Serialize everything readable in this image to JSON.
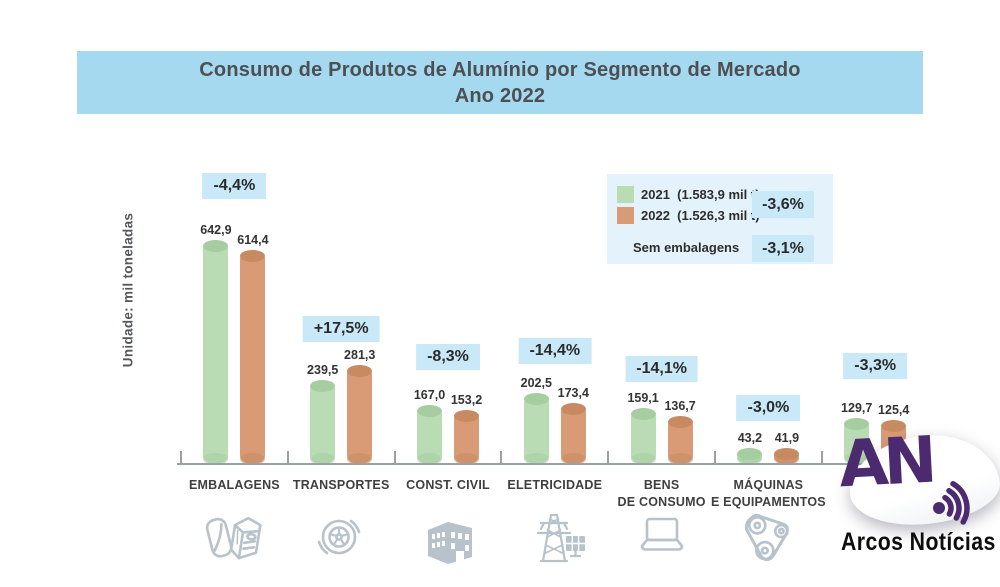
{
  "header": {
    "title_line1": "Consumo de Produtos de Alumínio por Segmento de Mercado",
    "title_line2": "Ano 2022",
    "bg_color": "#a5d9ef"
  },
  "y_axis_label": "Unidade: mil toneladas",
  "legend": {
    "panel_bg": "#e4f2fb",
    "badge_bg": "#c9e9f8",
    "items": [
      {
        "label": "2021",
        "amount": "(1.583,9 mil t)",
        "color": "#b9dcb4"
      },
      {
        "label": "2022",
        "amount": "(1.526,3 mil t)",
        "color": "#d89b75"
      }
    ],
    "total_badge": "-3,6%",
    "sem_embalagens_label": "Sem embalagens",
    "sem_embalagens_badge": "-3,1%"
  },
  "chart_data": {
    "type": "bar",
    "title": "Consumo de Produtos de Alumínio por Segmento de Mercado",
    "subtitle": "Ano 2022",
    "ylabel": "Unidade: mil toneladas",
    "ylim": [
      0,
      700
    ],
    "grid": false,
    "legend_position": "top-right",
    "categories": [
      "EMBALAGENS",
      "TRANSPORTES",
      "CONST. CIVIL",
      "ELETRICIDADE",
      "BENS\nDE CONSUMO",
      "MÁQUINAS\nE EQUIPAMENTOS",
      ""
    ],
    "series": [
      {
        "name": "2021",
        "total_label": "1.583,9 mil t",
        "color": "#b9dcb4",
        "cap_color": "#a5cda0",
        "values": [
          642.9,
          239.5,
          167.0,
          202.5,
          159.1,
          43.2,
          129.7
        ]
      },
      {
        "name": "2022",
        "total_label": "1.526,3 mil t",
        "color": "#d89b75",
        "cap_color": "#c78a61",
        "values": [
          614.4,
          281.3,
          153.2,
          173.4,
          136.7,
          41.9,
          125.4
        ]
      }
    ],
    "change_badges": [
      "-4,4%",
      "+17,5%",
      "-8,3%",
      "-14,4%",
      "-14,1%",
      "-3,0%",
      "-3,3%"
    ],
    "badge_bg": "#c9e9f8",
    "icons": [
      "packaging-icon",
      "tire-icon",
      "building-icon",
      "electricity-icon",
      "laptop-icon",
      "machinery-icon",
      ""
    ]
  },
  "logo": {
    "monogram": "AN",
    "name": "Arcos Notícias",
    "color": "#4b2a6f"
  }
}
